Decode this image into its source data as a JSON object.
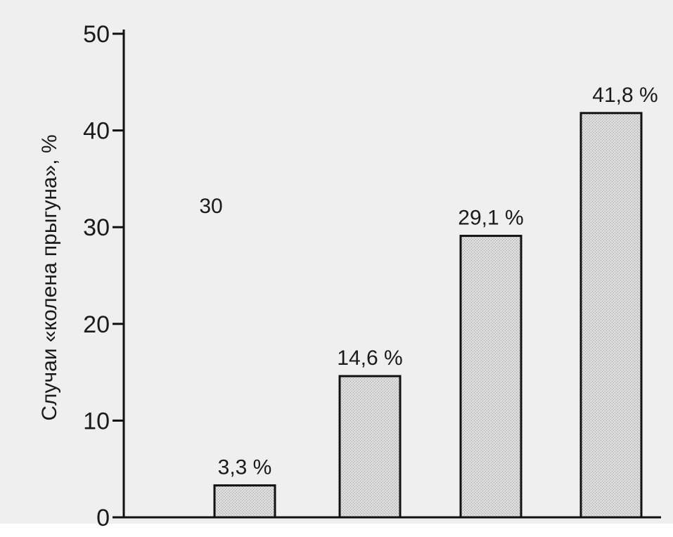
{
  "chart_data": {
    "type": "bar",
    "ylabel": "Случаи «колена прыгуна», %",
    "ylim": [
      0,
      50
    ],
    "yticks": [
      0,
      10,
      20,
      30,
      40,
      50
    ],
    "grid": false,
    "values": [
      3.3,
      14.6,
      29.1,
      41.8
    ],
    "value_labels": [
      "3,3 %",
      "14,6 %",
      "29,1 %",
      "41,8 %"
    ],
    "stray_label": "30",
    "colors": {
      "bar_fill": "#d2d2d2",
      "bar_stroke": "#111111",
      "axis": "#111111",
      "background_paper": "#ececec"
    }
  }
}
